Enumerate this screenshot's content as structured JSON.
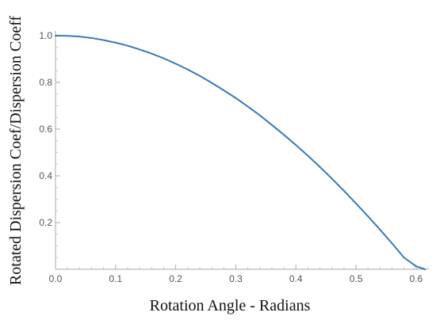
{
  "chart_data": {
    "type": "line",
    "title": "",
    "xlabel": "Rotation Angle - Radians",
    "ylabel": "Rotated Dispersion Coef/Dispersion Coeff",
    "xlim": [
      0,
      0.62
    ],
    "ylim": [
      0,
      1.0
    ],
    "x_ticks": [
      "0.0",
      "0.1",
      "0.2",
      "0.3",
      "0.4",
      "0.5",
      "0.6"
    ],
    "y_ticks": [
      "0.2",
      "0.4",
      "0.6",
      "0.8",
      "1.0"
    ],
    "grid": false,
    "series": [
      {
        "color": "#3a78b8",
        "x": [
          0.0,
          0.02,
          0.04,
          0.06,
          0.08,
          0.1,
          0.12,
          0.14,
          0.16,
          0.18,
          0.2,
          0.22,
          0.24,
          0.26,
          0.28,
          0.3,
          0.32,
          0.34,
          0.36,
          0.38,
          0.4,
          0.42,
          0.44,
          0.46,
          0.48,
          0.5,
          0.52,
          0.54,
          0.56,
          0.58,
          0.6,
          0.615
        ],
        "y": [
          1.0,
          0.999,
          0.996,
          0.99,
          0.981,
          0.97,
          0.957,
          0.941,
          0.923,
          0.903,
          0.88,
          0.855,
          0.828,
          0.798,
          0.766,
          0.733,
          0.697,
          0.659,
          0.618,
          0.576,
          0.532,
          0.486,
          0.438,
          0.388,
          0.336,
          0.282,
          0.227,
          0.17,
          0.111,
          0.05,
          0.013,
          0.0
        ]
      }
    ]
  }
}
